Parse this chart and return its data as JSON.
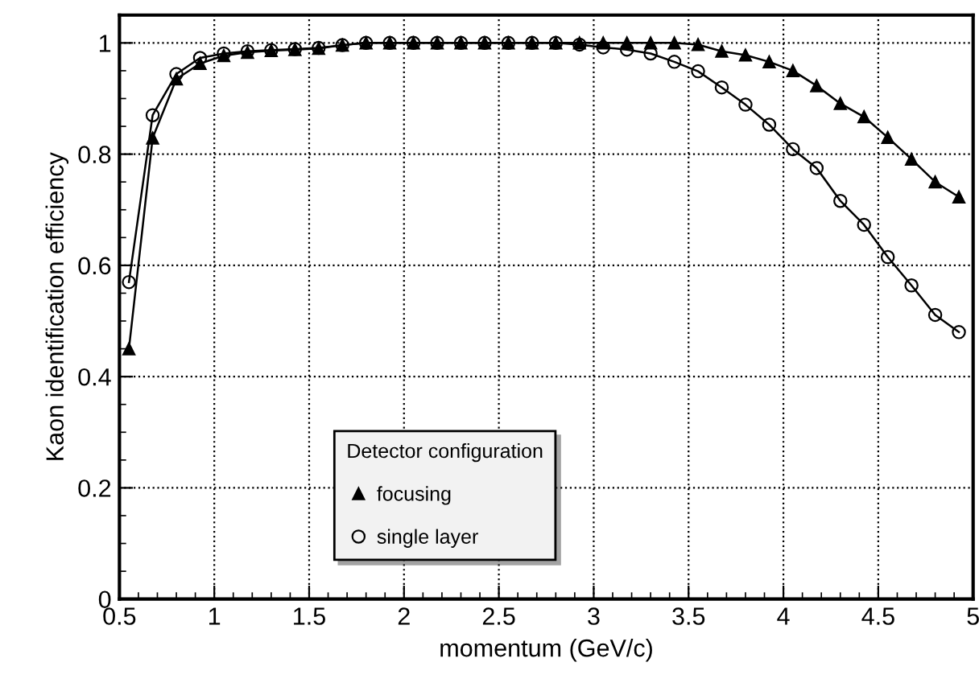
{
  "chart_data": {
    "type": "line",
    "xlabel": "momentum (GeV/c)",
    "ylabel": "Kaon identification efficiency",
    "x": [
      0.55,
      0.675,
      0.8,
      0.925,
      1.05,
      1.175,
      1.3,
      1.425,
      1.55,
      1.675,
      1.8,
      1.925,
      2.05,
      2.175,
      2.3,
      2.425,
      2.55,
      2.675,
      2.8,
      2.925,
      3.05,
      3.175,
      3.3,
      3.425,
      3.55,
      3.675,
      3.8,
      3.925,
      4.05,
      4.175,
      4.3,
      4.425,
      4.55,
      4.675,
      4.8,
      4.925
    ],
    "series": [
      {
        "name": "focusing",
        "color": "#000000",
        "marker": "triangle",
        "values": [
          0.45,
          0.829,
          0.935,
          0.963,
          0.977,
          0.983,
          0.986,
          0.988,
          0.99,
          0.996,
          1.0,
          1.0,
          1.0,
          1.0,
          1.0,
          1.0,
          1.0,
          1.0,
          1.0,
          1.0,
          1.0,
          1.0,
          1.0,
          1.0,
          0.997,
          0.985,
          0.978,
          0.966,
          0.95,
          0.923,
          0.891,
          0.867,
          0.83,
          0.791,
          0.75,
          0.723
        ]
      },
      {
        "name": "single layer",
        "color": "#000000",
        "marker": "circle",
        "values": [
          0.57,
          0.87,
          0.944,
          0.973,
          0.981,
          0.985,
          0.987,
          0.989,
          0.991,
          0.996,
          1.0,
          1.0,
          1.0,
          1.0,
          1.0,
          1.0,
          1.0,
          1.0,
          1.0,
          0.997,
          0.992,
          0.988,
          0.981,
          0.966,
          0.949,
          0.92,
          0.889,
          0.853,
          0.809,
          0.775,
          0.716,
          0.673,
          0.615,
          0.564,
          0.511,
          0.48
        ]
      }
    ],
    "xlim": [
      0.5,
      5
    ],
    "ylim": [
      0,
      1.05
    ],
    "xticks": [
      0.5,
      1,
      1.5,
      2,
      2.5,
      3,
      3.5,
      4,
      4.5,
      5
    ],
    "yticks": [
      0,
      0.2,
      0.4,
      0.6,
      0.8,
      1
    ],
    "grid": true,
    "legend": "bottom left",
    "legend_title": "Detector configuration",
    "line_style": "solid"
  }
}
